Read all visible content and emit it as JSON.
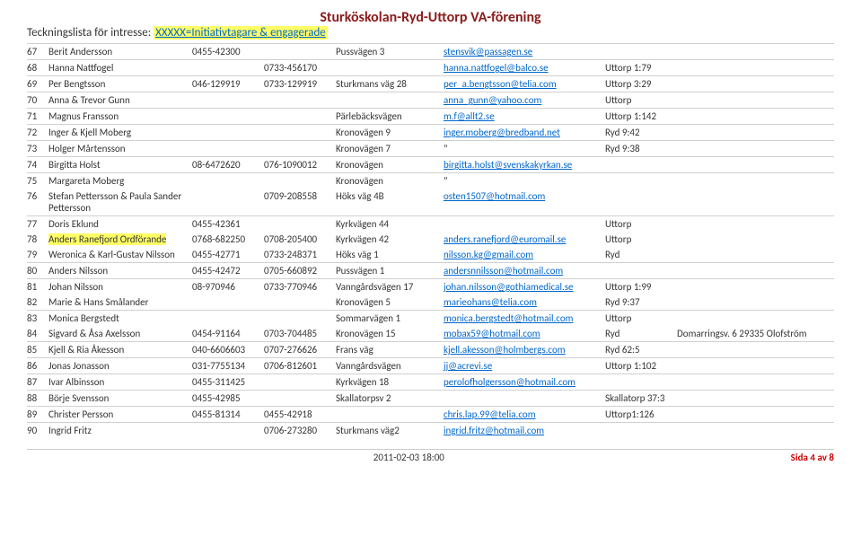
{
  "header": {
    "title": "Sturköskolan-Ryd-Uttorp VA-förening",
    "sub_pre": "Teckningslista för intresse:",
    "sub_hl": "XXXXX=Initiativtagare & engagerade"
  },
  "rows": [
    {
      "n": "67",
      "name": "Berit Andersson",
      "ph1": "0455-42300",
      "ph2": "",
      "addr": "Pussvägen 3",
      "email": "stensvik@passagen.se",
      "loc": ""
    },
    {
      "n": "68",
      "name": "Hanna Nattfogel",
      "ph1": "",
      "ph2": "0733-456170",
      "addr": "",
      "email": "hanna.nattfogel@balco.se",
      "loc": "Uttorp 1:79"
    },
    {
      "n": "69",
      "name": "Per Bengtsson",
      "ph1": "046-129919",
      "ph2": "0733-129919",
      "addr": "Sturkmans väg 28",
      "email": "per_a.bengtsson@telia.com",
      "loc": "Uttorp 3:29"
    },
    {
      "n": "70",
      "name": "Anna & Trevor Gunn",
      "ph1": "",
      "ph2": "",
      "addr": "",
      "email": "anna_gunn@yahoo.com",
      "loc": "Uttorp"
    },
    {
      "n": "71",
      "name": "Magnus Fransson",
      "ph1": "",
      "ph2": "",
      "addr": "Pärlebäcksvägen",
      "email": "m.f@allt2.se",
      "loc": "Uttorp 1:142"
    },
    {
      "n": "72",
      "name": "Inger & Kjell Moberg",
      "ph1": "",
      "ph2": "",
      "addr": "Kronovägen 9",
      "email": "inger.moberg@bredband.net",
      "loc": "Ryd 9:42"
    },
    {
      "n": "73",
      "name": "Holger Mårtensson",
      "ph1": "",
      "ph2": "",
      "addr": "Kronovägen 7",
      "email": "”",
      "loc": "Ryd 9:38",
      "plainEmail": true
    },
    {
      "n": "74",
      "name": "Birgitta Holst",
      "ph1": "08-6472620",
      "ph2": "076-1090012",
      "addr": "Kronovägen",
      "email": "birgitta.holst@svenskakyrkan.se",
      "loc": ""
    },
    {
      "n": "75",
      "name": "Margareta Moberg",
      "ph1": "",
      "ph2": "",
      "addr": "Kronovägen",
      "email": "”",
      "loc": "",
      "plainEmail": true
    },
    {
      "n": "76",
      "name": "Stefan Pettersson & Paula Sander Pettersson",
      "ph1": "",
      "ph2": "0709-208558",
      "addr": "Höks väg 4B",
      "email": "osten1507@hotmail.com",
      "loc": "",
      "nosep": true
    },
    {
      "n": "77",
      "name": "Doris Eklund",
      "ph1": "0455-42361",
      "ph2": "",
      "addr": "Kyrkvägen 44",
      "email": "",
      "loc": "Uttorp"
    },
    {
      "n": "78",
      "name": "Anders Ranefjord Ordförande",
      "nameHL": true,
      "ph1": "0768-682250",
      "ph2": "0708-205400",
      "addr": "Kyrkvägen 42",
      "email": "anders.ranefjord@euromail.se",
      "loc": "Uttorp",
      "nosep": true
    },
    {
      "n": "79",
      "name": "Weronica & Karl-Gustav Nilsson",
      "ph1": "0455-42771",
      "ph2": "0733-248371",
      "addr": "Höks väg 1",
      "email": "nilsson.kg@gmail.com",
      "loc": "Ryd",
      "nosep": true
    },
    {
      "n": "80",
      "name": "Anders Nilsson",
      "ph1": "0455-42472",
      "ph2": "0705-660892",
      "addr": "Pussvägen 1",
      "email": "andersnnilsson@hotmail.com",
      "loc": ""
    },
    {
      "n": "81",
      "name": "Johan Nilsson",
      "ph1": "08-970946",
      "ph2": "0733-770946",
      "addr": "Vanngårdsvägen 17",
      "email": "johan.nilsson@gothiamedical.se",
      "loc": "Uttorp 1:99"
    },
    {
      "n": "82",
      "name": "Marie & Hans Smålander",
      "ph1": "",
      "ph2": "",
      "addr": "Kronovägen 5",
      "email": "marieohans@telia.com",
      "loc": "Ryd 9:37",
      "nosep": true
    },
    {
      "n": "83",
      "name": "Monica Bergstedt",
      "ph1": "",
      "ph2": "",
      "addr": "Sommarvägen 1",
      "email": "monica.bergstedt@hotmail.com",
      "loc": "Uttorp"
    },
    {
      "n": "84",
      "name": "Sigvard & Åsa Axelsson",
      "ph1": "0454-91164",
      "ph2": "0703-704485",
      "addr": "Kronovägen 15",
      "email": "mobax59@hotmail.com",
      "loc": "Ryd",
      "ext": "Domarringsv. 6     29335          Olofström",
      "nosep": true
    },
    {
      "n": "85",
      "name": "Kjell & Ria Åkesson",
      "ph1": "040-6606603",
      "ph2": "0707-276626",
      "addr": "Frans väg",
      "email": "kjell.akesson@holmbergs.com",
      "loc": "Ryd 62:5"
    },
    {
      "n": "86",
      "name": "Jonas Jonasson",
      "ph1": "031-7755134",
      "ph2": "0706-812601",
      "addr": "Vanngårdsvägen",
      "email": "jj@acrevi.se",
      "loc": "Uttorp 1:102"
    },
    {
      "n": "87",
      "name": "Ivar Albinsson",
      "ph1": "0455-311425",
      "ph2": "",
      "addr": "Kyrkvägen 18",
      "email": "perolofholgersson@hotmail.com",
      "loc": ""
    },
    {
      "n": "88",
      "name": "Börje Svensson",
      "ph1": "0455-42985",
      "ph2": "",
      "addr": "Skallatorpsv 2",
      "email": "",
      "loc": "Skallatorp 37:3"
    },
    {
      "n": "89",
      "name": "Christer Persson",
      "ph1": "0455-81314",
      "ph2": "0455-42918",
      "addr": "",
      "email": "chris.lap.99@telia.com",
      "loc": "Uttorp1:126"
    },
    {
      "n": "90",
      "name": "Ingrid Fritz",
      "ph1": "",
      "ph2": "0706-273280",
      "addr": "Sturkmans väg2",
      "email": "ingrid.fritz@hotmail.com",
      "loc": ""
    }
  ],
  "footer": {
    "left": "2011-02-03 18:00",
    "right": "Sida 4 av 8"
  }
}
